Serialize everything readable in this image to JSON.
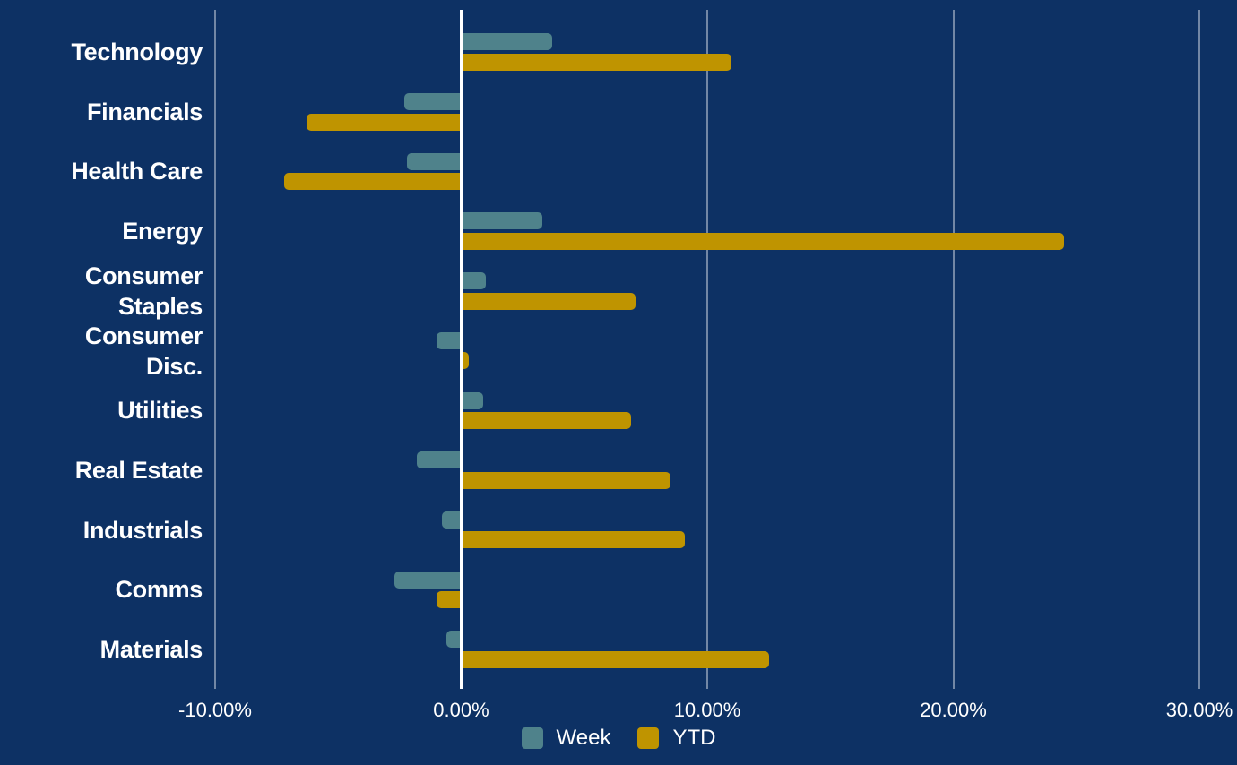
{
  "chart_data": {
    "type": "bar",
    "orientation": "horizontal",
    "title": "",
    "categories": [
      "Technology",
      "Financials",
      "Health Care",
      "Energy",
      "Consumer Staples",
      "Consumer Disc.",
      "Utilities",
      "Real Estate",
      "Industrials",
      "Comms",
      "Materials"
    ],
    "category_lines": [
      [
        "Technology"
      ],
      [
        "Financials"
      ],
      [
        "Health Care"
      ],
      [
        "Energy"
      ],
      [
        "Consumer",
        "Staples"
      ],
      [
        "Consumer",
        "Disc."
      ],
      [
        "Utilities"
      ],
      [
        "Real Estate"
      ],
      [
        "Industrials"
      ],
      [
        "Comms"
      ],
      [
        "Materials"
      ]
    ],
    "series": [
      {
        "name": "Week",
        "color": "#4f828b",
        "values": [
          3.7,
          -2.3,
          -2.2,
          3.3,
          1.0,
          -1.0,
          0.9,
          -1.8,
          -0.8,
          -2.7,
          -0.6
        ]
      },
      {
        "name": "YTD",
        "color": "#bf9400",
        "values": [
          11.0,
          -6.3,
          -7.2,
          24.5,
          7.1,
          0.3,
          6.9,
          8.5,
          9.1,
          -1.0,
          12.5
        ]
      }
    ],
    "value_unit": "%",
    "x_axis": {
      "min": -10,
      "max": 30,
      "ticks": [
        -10,
        0,
        10,
        20,
        30
      ],
      "tick_labels": [
        "-10.00%",
        "0.00%",
        "10.00%",
        "20.00%",
        "30.00%"
      ]
    },
    "legend": {
      "position": "bottom",
      "entries": [
        "Week",
        "YTD"
      ]
    },
    "grid": true
  },
  "colors": {
    "background": "#0d3164",
    "week_bar": "#4f828b",
    "ytd_bar": "#bf9400",
    "gridline": "rgba(255,255,255,0.42)",
    "zero_line": "#ffffff",
    "text": "#ffffff"
  }
}
